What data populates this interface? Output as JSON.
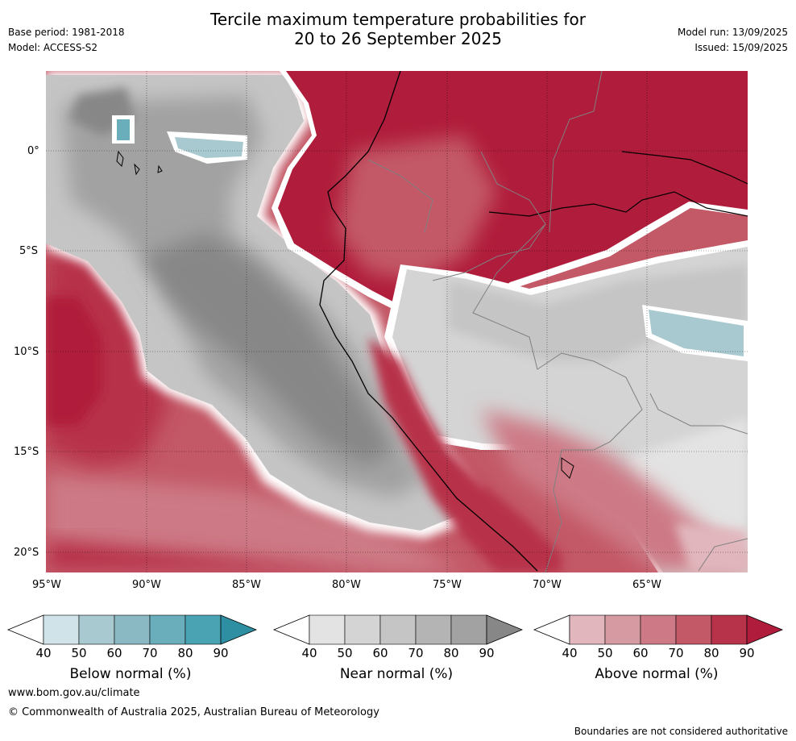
{
  "header": {
    "title_line1": "Tercile maximum temperature probabilities for",
    "title_line2": "20 to 26 September 2025",
    "base_period": "Base period: 1981-2018",
    "model": "Model: ACCESS-S2",
    "model_run": "Model run: 13/09/2025",
    "issued": "Issued: 15/09/2025"
  },
  "map": {
    "lat_labels": [
      "0°",
      "5°S",
      "10°S",
      "15°S",
      "20°S"
    ],
    "lon_labels": [
      "95°W",
      "90°W",
      "85°W",
      "80°W",
      "75°W",
      "70°W",
      "65°W"
    ],
    "lon_range": [
      -95,
      -60
    ],
    "lat_range": [
      -21,
      4
    ],
    "regions": {
      "above_normal": [
        "northern South America (Colombia, northern Peru, Brazil) 80-90%",
        "southeast Pacific south of 13°S",
        "coastal Peru and Chile",
        "far western Pacific near 10°S"
      ],
      "near_normal": [
        "central eastern Pacific 80°W-90°W",
        "central Peru and Bolivia lowlands"
      ],
      "below_normal": [
        "near Galápagos Islands",
        "eastern Bolivia/Brazil near 10°S"
      ]
    }
  },
  "colorbars": [
    {
      "name": "below",
      "label": "Below normal (%)",
      "ticks": [
        "40",
        "50",
        "60",
        "70",
        "80",
        "90"
      ],
      "colors": [
        "#ffffff",
        "#cfe3e8",
        "#a9c9d0",
        "#8ab9c4",
        "#6aaebb",
        "#4aa3b3",
        "#2d8fa1"
      ]
    },
    {
      "name": "near",
      "label": "Near normal (%)",
      "ticks": [
        "40",
        "50",
        "60",
        "70",
        "80",
        "90"
      ],
      "colors": [
        "#ffffff",
        "#e3e3e3",
        "#d4d4d4",
        "#c5c5c5",
        "#b4b4b4",
        "#a2a2a2",
        "#878787"
      ]
    },
    {
      "name": "above",
      "label": "Above normal (%)",
      "ticks": [
        "40",
        "50",
        "60",
        "70",
        "80",
        "90"
      ],
      "colors": [
        "#ffffff",
        "#e1b7bd",
        "#d59aa2",
        "#cd7a86",
        "#c35866",
        "#b7334a",
        "#b01c3b"
      ]
    }
  ],
  "footer": {
    "url": "www.bom.gov.au/climate",
    "copyright": "© Commonwealth of Australia 2025, Australian Bureau of Meteorology",
    "disclaimer": "Boundaries are not considered authoritative"
  }
}
